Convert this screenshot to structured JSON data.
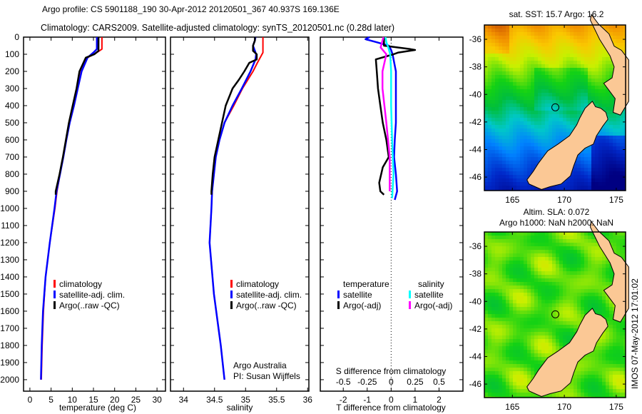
{
  "colors": {
    "climatology": "#ff0000",
    "satellite": "#0000ff",
    "argo": "#000000",
    "sal_satellite": "#00ffff",
    "sal_argo": "#ff00ff",
    "land": "#fbc895"
  },
  "chart_data": [
    {
      "id": "temperature",
      "type": "line",
      "title_line1": "Argo profile: CS 5901188_190 30-Apr-2012 20120501_367 40.937S 169.136E",
      "title_line2": "Climatology: CARS2009. Satellite-adjusted climatology: synTS_20120501.nc (0.28d later)",
      "xlabel": "temperature (deg C)",
      "ylabel": "",
      "xlim": [
        -1.5,
        32
      ],
      "ylim": [
        2067,
        0
      ],
      "xticks": [
        "0",
        "5",
        "10",
        "15",
        "20",
        "25",
        "30"
      ],
      "yticks": [
        "0",
        "100",
        "200",
        "300",
        "400",
        "500",
        "600",
        "700",
        "800",
        "900",
        "1000",
        "1100",
        "1200",
        "1300",
        "1400",
        "1500",
        "1600",
        "1700",
        "1800",
        "1900",
        "2000"
      ],
      "legend": [
        "climatology",
        "satellite-adj. clim.",
        "Argo(..raw -QC)"
      ],
      "series": [
        {
          "name": "climatology",
          "depth": [
            0,
            70,
            90,
            120,
            200,
            300,
            400,
            500,
            600,
            700,
            800,
            900,
            1000,
            1200,
            1400,
            1600,
            1800,
            2000
          ],
          "values": [
            17.0,
            17.0,
            15.8,
            13.6,
            12.1,
            11.3,
            10.4,
            9.4,
            8.6,
            7.9,
            7.1,
            6.4,
            5.9,
            4.7,
            3.7,
            3.2,
            2.9,
            2.7
          ]
        },
        {
          "name": "satellite-adj. clim.",
          "depth": [
            0,
            70,
            90,
            120,
            200,
            300,
            400,
            500,
            600,
            700,
            800,
            900,
            1000,
            1200,
            1400,
            1600,
            1800,
            2000
          ],
          "values": [
            15.8,
            15.8,
            15.0,
            13.6,
            12.2,
            11.3,
            10.4,
            9.4,
            8.6,
            7.9,
            7.1,
            6.3,
            5.8,
            4.7,
            3.7,
            3.1,
            2.8,
            2.6
          ]
        },
        {
          "name": "Argo(..raw -QC)",
          "depth": [
            0,
            80,
            100,
            120,
            200,
            300,
            400,
            500,
            600,
            700,
            800,
            900,
            920
          ],
          "values": [
            16.2,
            16.2,
            15.2,
            13.2,
            11.7,
            11.0,
            10.1,
            9.2,
            8.5,
            7.8,
            7.0,
            6.1,
            6.1
          ]
        }
      ]
    },
    {
      "id": "salinity",
      "type": "line",
      "xlabel": "salinity",
      "xlim": [
        33.79,
        36.02
      ],
      "ylim": [
        2067,
        0
      ],
      "xticks": [
        "34",
        "34.5",
        "35",
        "35.5",
        "36"
      ],
      "legend": [
        "climatology",
        "satellite-adj. clim.",
        "Argo(..raw -QC)"
      ],
      "annotation_line1": "Argo Australia",
      "annotation_line2": "PI: Susan Wijffels",
      "series": [
        {
          "name": "climatology",
          "depth": [
            0,
            90,
            150,
            200,
            300,
            400,
            500,
            600,
            700,
            900,
            1000,
            1200,
            1500,
            1800,
            2000
          ],
          "values": [
            35.28,
            35.28,
            35.19,
            35.12,
            34.95,
            34.81,
            34.66,
            34.58,
            34.52,
            34.46,
            34.45,
            34.42,
            34.49,
            34.6,
            34.66
          ]
        },
        {
          "name": "satellite-adj. clim.",
          "depth": [
            0,
            20,
            50,
            100,
            130,
            200,
            300,
            400,
            500,
            600,
            700,
            900,
            1000,
            1200,
            1500,
            1800,
            2000
          ],
          "values": [
            35.16,
            35.15,
            35.12,
            35.17,
            35.16,
            35.08,
            34.94,
            34.79,
            34.66,
            34.58,
            34.52,
            34.46,
            34.45,
            34.42,
            34.49,
            34.6,
            34.66
          ]
        },
        {
          "name": "Argo(..raw -QC)",
          "depth": [
            0,
            20,
            50,
            80,
            100,
            130,
            150,
            200,
            250,
            300,
            400,
            500,
            600,
            700,
            800,
            900,
            920
          ],
          "values": [
            35.15,
            35.15,
            35.12,
            35.12,
            35.18,
            35.18,
            35.06,
            34.98,
            34.89,
            34.79,
            34.68,
            34.62,
            34.56,
            34.5,
            34.47,
            34.45,
            34.45
          ]
        }
      ]
    },
    {
      "id": "difference",
      "type": "line",
      "xlabel": "T difference from climatology",
      "xlabel_top": "S difference from climatology",
      "xlim": [
        -2.96,
        3.0
      ],
      "ylim": [
        2067,
        0
      ],
      "xticks": [
        "-2",
        "-1",
        "0",
        "1",
        "2"
      ],
      "xticks_top": [
        "-0.5",
        "-0.25",
        "0",
        "0.25",
        "0.5"
      ],
      "legend_temperature_title": "temperature",
      "legend_salinity_title": "salinity",
      "legend": [
        "satellite",
        "Argo(-adj)",
        "satellite",
        "Argo(-adj)"
      ],
      "series": [
        {
          "name": "temperature satellite",
          "variable": "T",
          "depth": [
            0,
            12,
            30,
            50,
            75,
            100,
            200,
            300,
            400,
            500,
            600,
            700,
            800,
            900,
            950
          ],
          "values": [
            -0.9,
            -1.07,
            -0.6,
            -0.1,
            0.0,
            0.06,
            0.2,
            0.2,
            0.2,
            0.2,
            0.15,
            0.12,
            0.2,
            0.25,
            0.15
          ]
        },
        {
          "name": "temperature Argo(-adj)",
          "variable": "T",
          "depth": [
            0,
            50,
            70,
            75,
            90,
            100,
            130,
            200,
            300,
            400,
            500,
            600,
            700,
            760,
            850,
            900,
            920
          ],
          "values": [
            -0.3,
            -0.3,
            0.8,
            1.0,
            0.3,
            0.1,
            -0.64,
            -0.6,
            -0.55,
            -0.45,
            -0.35,
            -0.2,
            -0.1,
            -0.35,
            -0.5,
            -0.45,
            -0.3
          ]
        },
        {
          "name": "salinity satellite",
          "variable": "S",
          "depth": [
            0,
            30,
            60,
            100,
            200,
            400,
            600,
            800,
            940
          ],
          "values": [
            -0.06,
            -0.05,
            -0.03,
            -0.01,
            0.0,
            0.0,
            0.01,
            0.025,
            0.01
          ]
        },
        {
          "name": "salinity Argo(-adj)",
          "variable": "S",
          "depth": [
            0,
            40,
            60,
            100,
            200,
            300,
            500,
            700,
            900
          ],
          "values": [
            -0.08,
            -0.1,
            -0.11,
            -0.05,
            -0.09,
            -0.09,
            -0.05,
            -0.015,
            -0.015
          ]
        }
      ]
    },
    {
      "id": "sst_map",
      "type": "heatmap",
      "title": "sat. SST: 15.7 Argo: 16.2",
      "xlim": [
        162.3,
        175.9
      ],
      "ylim": [
        -46.98,
        -34.96
      ],
      "xticks": [
        "165",
        "170",
        "175"
      ],
      "yticks": [
        "-36",
        "-38",
        "-40",
        "-42",
        "-44",
        "-46"
      ],
      "argo_position": {
        "lon": 169.136,
        "lat": -40.937
      }
    },
    {
      "id": "sla_map",
      "type": "heatmap",
      "title_line1": "Altim. SLA: 0.072",
      "title_line2": "Argo h1000: NaN h2000: NaN",
      "xlim": [
        162.3,
        175.9
      ],
      "ylim": [
        -46.98,
        -34.96
      ],
      "xticks": [
        "165",
        "170",
        "175"
      ],
      "yticks": [
        "-36",
        "-38",
        "-40",
        "-42",
        "-44",
        "-46"
      ],
      "argo_position": {
        "lon": 169.136,
        "lat": -40.937
      }
    }
  ],
  "footer_stamp": "IMOS 07-May-2012 17:01:02"
}
